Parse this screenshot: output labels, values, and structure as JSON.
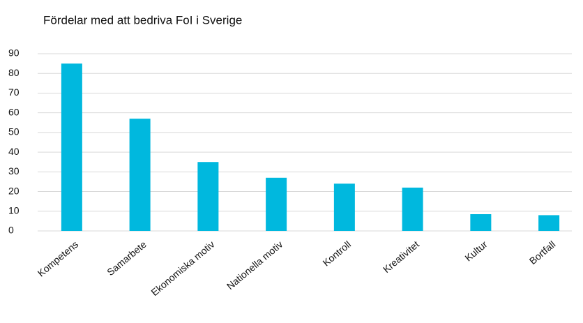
{
  "chart_data": {
    "type": "bar",
    "title": "Fördelar med att bedriva FoI i Sverige",
    "categories": [
      "Kompetens",
      "Samarbete",
      "Ekonomiska motiv",
      "Nationella motiv",
      "Kontroll",
      "Kreativitet",
      "Kultur",
      "Bortfall"
    ],
    "values": [
      85,
      57,
      35,
      27,
      24,
      22,
      8.5,
      8
    ],
    "color": "#00b8de",
    "ylim": [
      0,
      90
    ],
    "yticks": [
      0,
      10,
      20,
      30,
      40,
      50,
      60,
      70,
      80,
      90
    ],
    "grid": true
  }
}
